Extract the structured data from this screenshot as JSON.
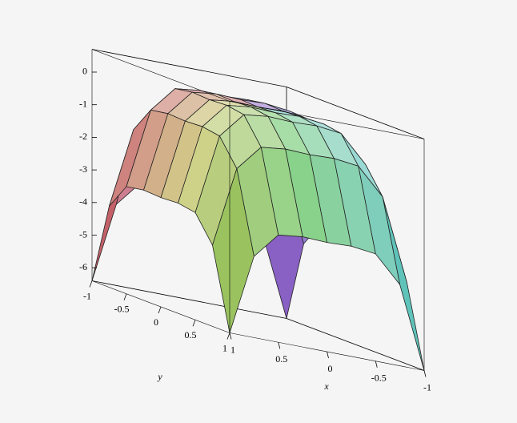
{
  "chart_data": {
    "type": "surface",
    "x_label": "x",
    "y_label": "y",
    "x": [
      -1,
      -0.75,
      -0.5,
      -0.25,
      0,
      0.25,
      0.5,
      0.75,
      1
    ],
    "y": [
      -1,
      -0.75,
      -0.5,
      -0.25,
      0,
      0.25,
      0.5,
      0.75,
      1
    ],
    "z": [
      [
        -6.4,
        -3.91,
        -3.11,
        -3.02,
        -3.05,
        -3.02,
        -3.11,
        -3.91,
        -6.4
      ],
      [
        -3.91,
        -1.42,
        -0.62,
        -0.53,
        -0.56,
        -0.53,
        -0.62,
        -1.42,
        -3.91
      ],
      [
        -3.11,
        -0.62,
        0.18,
        0.27,
        0.24,
        0.27,
        0.18,
        -0.62,
        -3.11
      ],
      [
        -3.02,
        -0.53,
        0.27,
        0.36,
        0.33,
        0.36,
        0.27,
        -0.53,
        -3.02
      ],
      [
        -3.05,
        -0.56,
        0.24,
        0.33,
        0.3,
        0.33,
        0.24,
        -0.56,
        -3.05
      ],
      [
        -3.02,
        -0.53,
        0.27,
        0.36,
        0.33,
        0.36,
        0.27,
        -0.53,
        -3.02
      ],
      [
        -3.11,
        -0.62,
        0.18,
        0.27,
        0.24,
        0.27,
        0.18,
        -0.62,
        -3.11
      ],
      [
        -3.91,
        -1.42,
        -0.62,
        -0.53,
        -0.56,
        -0.53,
        -0.62,
        -1.42,
        -3.91
      ],
      [
        -6.4,
        -3.91,
        -3.11,
        -3.02,
        -3.05,
        -3.02,
        -3.11,
        -3.91,
        -6.4
      ]
    ],
    "xlim": [
      -1,
      1
    ],
    "ylim": [
      -1,
      1
    ],
    "zlim": [
      -6.4,
      0.7
    ],
    "xticks": [
      -1,
      -0.5,
      0,
      0.5,
      1
    ],
    "yticks": [
      -1,
      -0.5,
      0,
      0.5,
      1
    ],
    "zticks": [
      -6,
      -5,
      -4,
      -3,
      -2,
      -1,
      0
    ]
  }
}
